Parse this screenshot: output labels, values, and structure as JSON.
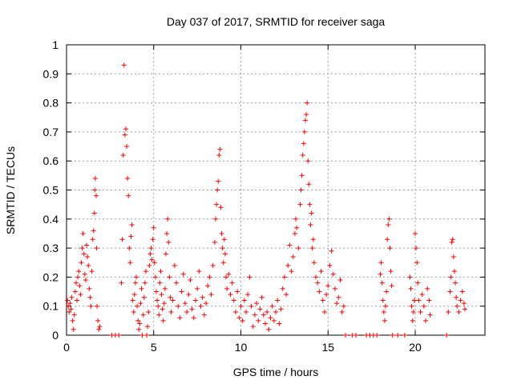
{
  "chart_data": {
    "type": "scatter",
    "title": "Day 037 of 2017, SRMTID for receiver saga",
    "xlabel": "GPS time / hours",
    "ylabel": "SRMTID / TECUs",
    "xlim": [
      0,
      24
    ],
    "ylim": [
      0,
      1
    ],
    "x_ticks": [
      0,
      5,
      10,
      15,
      20
    ],
    "x_tick_labels": [
      "0",
      "5",
      "10",
      "15",
      "20"
    ],
    "y_ticks": [
      0,
      0.1,
      0.2,
      0.3,
      0.4,
      0.5,
      0.6,
      0.7,
      0.8,
      0.9,
      1
    ],
    "y_tick_labels": [
      "0",
      "0.1",
      "0.2",
      "0.3",
      "0.4",
      "0.5",
      "0.6",
      "0.7",
      "0.8",
      "0.9",
      "1"
    ],
    "grid": true,
    "marker": "+",
    "color": "#ff0000",
    "series": [
      {
        "name": "SRMTID",
        "points": [
          [
            0.05,
            0.12
          ],
          [
            0.1,
            0.1
          ],
          [
            0.15,
            0.08
          ],
          [
            0.2,
            0.11
          ],
          [
            0.25,
            0.09
          ],
          [
            0.3,
            0.13
          ],
          [
            0.35,
            0.05
          ],
          [
            0.4,
            0.02
          ],
          [
            0.45,
            0.07
          ],
          [
            0.5,
            0.15
          ],
          [
            0.55,
            0.18
          ],
          [
            0.6,
            0.12
          ],
          [
            0.65,
            0.2
          ],
          [
            0.7,
            0.22
          ],
          [
            0.75,
            0.17
          ],
          [
            0.8,
            0.14
          ],
          [
            0.85,
            0.25
          ],
          [
            0.9,
            0.3
          ],
          [
            0.95,
            0.35
          ],
          [
            1.0,
            0.28
          ],
          [
            1.05,
            0.21
          ],
          [
            1.1,
            0.19
          ],
          [
            1.15,
            0.31
          ],
          [
            1.2,
            0.27
          ],
          [
            1.25,
            0.24
          ],
          [
            1.3,
            0.16
          ],
          [
            1.35,
            0.13
          ],
          [
            1.4,
            0.1
          ],
          [
            1.45,
            0.22
          ],
          [
            1.5,
            0.33
          ],
          [
            1.55,
            0.36
          ],
          [
            1.6,
            0.42
          ],
          [
            1.62,
            0.5
          ],
          [
            1.65,
            0.54
          ],
          [
            1.7,
            0.48
          ],
          [
            1.72,
            0.3
          ],
          [
            1.75,
            0.1
          ],
          [
            1.8,
            0.05
          ],
          [
            1.85,
            0.02
          ],
          [
            1.9,
            0.03
          ],
          [
            2.6,
            0.0
          ],
          [
            2.8,
            0.0
          ],
          [
            3.0,
            0.0
          ],
          [
            3.15,
            0.18
          ],
          [
            3.2,
            0.33
          ],
          [
            3.25,
            0.62
          ],
          [
            3.3,
            0.93
          ],
          [
            3.35,
            0.69
          ],
          [
            3.4,
            0.71
          ],
          [
            3.45,
            0.65
          ],
          [
            3.5,
            0.54
          ],
          [
            3.55,
            0.48
          ],
          [
            3.6,
            0.3
          ],
          [
            3.65,
            0.25
          ],
          [
            3.7,
            0.34
          ],
          [
            3.75,
            0.38
          ],
          [
            3.8,
            0.12
          ],
          [
            3.85,
            0.08
          ],
          [
            3.9,
            0.14
          ],
          [
            3.95,
            0.18
          ],
          [
            4.0,
            0.2
          ],
          [
            4.05,
            0.1
          ],
          [
            4.1,
            0.05
          ],
          [
            4.15,
            0.02
          ],
          [
            4.2,
            0.04
          ],
          [
            4.25,
            0.11
          ],
          [
            4.3,
            0.16
          ],
          [
            4.35,
            0.0
          ],
          [
            4.4,
            0.07
          ],
          [
            4.45,
            0.13
          ],
          [
            4.5,
            0.18
          ],
          [
            4.55,
            0.22
          ],
          [
            4.6,
            0.0
          ],
          [
            4.65,
            0.03
          ],
          [
            4.7,
            0.08
          ],
          [
            4.75,
            0.24
          ],
          [
            4.8,
            0.28
          ],
          [
            4.85,
            0.3
          ],
          [
            4.9,
            0.26
          ],
          [
            4.95,
            0.33
          ],
          [
            5.0,
            0.37
          ],
          [
            5.05,
            0.25
          ],
          [
            5.1,
            0.2
          ],
          [
            5.15,
            0.15
          ],
          [
            5.2,
            0.12
          ],
          [
            5.25,
            0.1
          ],
          [
            5.3,
            0.07
          ],
          [
            5.35,
            0.18
          ],
          [
            5.4,
            0.22
          ],
          [
            5.45,
            0.14
          ],
          [
            5.5,
            0.09
          ],
          [
            5.55,
            0.05
          ],
          [
            5.6,
            0.11
          ],
          [
            5.65,
            0.16
          ],
          [
            5.7,
            0.28
          ],
          [
            5.75,
            0.35
          ],
          [
            5.8,
            0.4
          ],
          [
            5.85,
            0.32
          ],
          [
            5.9,
            0.2
          ],
          [
            5.95,
            0.13
          ],
          [
            6.0,
            0.08
          ],
          [
            6.1,
            0.12
          ],
          [
            6.2,
            0.24
          ],
          [
            6.3,
            0.18
          ],
          [
            6.4,
            0.1
          ],
          [
            6.5,
            0.06
          ],
          [
            6.6,
            0.15
          ],
          [
            6.7,
            0.21
          ],
          [
            6.8,
            0.11
          ],
          [
            6.9,
            0.08
          ],
          [
            7.0,
            0.14
          ],
          [
            7.1,
            0.19
          ],
          [
            7.2,
            0.09
          ],
          [
            7.3,
            0.06
          ],
          [
            7.4,
            0.12
          ],
          [
            7.5,
            0.16
          ],
          [
            7.6,
            0.22
          ],
          [
            7.7,
            0.1
          ],
          [
            7.8,
            0.13
          ],
          [
            7.9,
            0.07
          ],
          [
            8.0,
            0.11
          ],
          [
            8.1,
            0.17
          ],
          [
            8.2,
            0.2
          ],
          [
            8.3,
            0.14
          ],
          [
            8.4,
            0.24
          ],
          [
            8.5,
            0.32
          ],
          [
            8.55,
            0.4
          ],
          [
            8.6,
            0.45
          ],
          [
            8.65,
            0.5
          ],
          [
            8.7,
            0.53
          ],
          [
            8.75,
            0.62
          ],
          [
            8.8,
            0.64
          ],
          [
            8.85,
            0.44
          ],
          [
            8.9,
            0.35
          ],
          [
            8.95,
            0.3
          ],
          [
            9.0,
            0.25
          ],
          [
            9.05,
            0.33
          ],
          [
            9.1,
            0.28
          ],
          [
            9.15,
            0.2
          ],
          [
            9.2,
            0.16
          ],
          [
            9.3,
            0.21
          ],
          [
            9.4,
            0.14
          ],
          [
            9.5,
            0.18
          ],
          [
            9.6,
            0.12
          ],
          [
            9.7,
            0.08
          ],
          [
            9.8,
            0.15
          ],
          [
            9.9,
            0.06
          ],
          [
            10.0,
            0.1
          ],
          [
            10.1,
            0.05
          ],
          [
            10.2,
            0.12
          ],
          [
            10.3,
            0.08
          ],
          [
            10.4,
            0.14
          ],
          [
            10.5,
            0.2
          ],
          [
            10.6,
            0.1
          ],
          [
            10.7,
            0.03
          ],
          [
            10.8,
            0.07
          ],
          [
            10.9,
            0.11
          ],
          [
            11.0,
            0.05
          ],
          [
            11.1,
            0.09
          ],
          [
            11.2,
            0.13
          ],
          [
            11.3,
            0.07
          ],
          [
            11.4,
            0.04
          ],
          [
            11.5,
            0.08
          ],
          [
            11.6,
            0.02
          ],
          [
            11.7,
            0.06
          ],
          [
            11.8,
            0.1
          ],
          [
            11.9,
            0.05
          ],
          [
            12.0,
            0.08
          ],
          [
            12.1,
            0.12
          ],
          [
            12.2,
            0.04
          ],
          [
            12.3,
            0.09
          ],
          [
            12.4,
            0.16
          ],
          [
            12.5,
            0.2
          ],
          [
            12.6,
            0.14
          ],
          [
            12.7,
            0.24
          ],
          [
            12.8,
            0.31
          ],
          [
            12.9,
            0.22
          ],
          [
            13.0,
            0.27
          ],
          [
            13.1,
            0.35
          ],
          [
            13.15,
            0.4
          ],
          [
            13.2,
            0.37
          ],
          [
            13.3,
            0.3
          ],
          [
            13.4,
            0.45
          ],
          [
            13.45,
            0.5
          ],
          [
            13.5,
            0.55
          ],
          [
            13.55,
            0.62
          ],
          [
            13.6,
            0.66
          ],
          [
            13.65,
            0.7
          ],
          [
            13.7,
            0.74
          ],
          [
            13.75,
            0.76
          ],
          [
            13.8,
            0.8
          ],
          [
            13.85,
            0.6
          ],
          [
            13.9,
            0.52
          ],
          [
            13.95,
            0.45
          ],
          [
            14.0,
            0.38
          ],
          [
            14.05,
            0.42
          ],
          [
            14.1,
            0.3
          ],
          [
            14.15,
            0.33
          ],
          [
            14.2,
            0.25
          ],
          [
            14.3,
            0.2
          ],
          [
            14.4,
            0.18
          ],
          [
            14.5,
            0.15
          ],
          [
            14.6,
            0.22
          ],
          [
            14.7,
            0.12
          ],
          [
            14.8,
            0.08
          ],
          [
            14.9,
            0.14
          ],
          [
            15.0,
            0.17
          ],
          [
            15.1,
            0.24
          ],
          [
            15.2,
            0.29
          ],
          [
            15.3,
            0.21
          ],
          [
            15.4,
            0.16
          ],
          [
            15.5,
            0.11
          ],
          [
            15.6,
            0.13
          ],
          [
            15.7,
            0.19
          ],
          [
            15.8,
            0.08
          ],
          [
            15.9,
            0.1
          ],
          [
            16.0,
            0.0
          ],
          [
            16.4,
            0.0
          ],
          [
            16.6,
            0.0
          ],
          [
            17.2,
            0.0
          ],
          [
            17.4,
            0.0
          ],
          [
            17.6,
            0.0
          ],
          [
            17.8,
            0.0
          ],
          [
            18.0,
            0.21
          ],
          [
            18.05,
            0.25
          ],
          [
            18.1,
            0.18
          ],
          [
            18.15,
            0.12
          ],
          [
            18.2,
            0.08
          ],
          [
            18.25,
            0.05
          ],
          [
            18.3,
            0.1
          ],
          [
            18.35,
            0.15
          ],
          [
            18.4,
            0.33
          ],
          [
            18.45,
            0.38
          ],
          [
            18.5,
            0.4
          ],
          [
            18.55,
            0.3
          ],
          [
            18.6,
            0.22
          ],
          [
            18.65,
            0.17
          ],
          [
            18.7,
            0.0
          ],
          [
            19.0,
            0.0
          ],
          [
            19.4,
            0.0
          ],
          [
            19.7,
            0.2
          ],
          [
            19.75,
            0.16
          ],
          [
            19.8,
            0.1
          ],
          [
            19.85,
            0.05
          ],
          [
            19.9,
            0.08
          ],
          [
            19.95,
            0.12
          ],
          [
            20.0,
            0.35
          ],
          [
            20.05,
            0.3
          ],
          [
            20.1,
            0.25
          ],
          [
            20.15,
            0.18
          ],
          [
            20.2,
            0.12
          ],
          [
            20.3,
            0.08
          ],
          [
            20.4,
            0.14
          ],
          [
            20.5,
            0.1
          ],
          [
            20.6,
            0.05
          ],
          [
            20.7,
            0.16
          ],
          [
            20.8,
            0.12
          ],
          [
            20.85,
            0.07
          ],
          [
            21.8,
            0.0
          ],
          [
            21.9,
            0.08
          ],
          [
            22.0,
            0.15
          ],
          [
            22.05,
            0.2
          ],
          [
            22.1,
            0.32
          ],
          [
            22.15,
            0.33
          ],
          [
            22.2,
            0.27
          ],
          [
            22.25,
            0.22
          ],
          [
            22.3,
            0.18
          ],
          [
            22.35,
            0.13
          ],
          [
            22.4,
            0.1
          ],
          [
            22.5,
            0.08
          ],
          [
            22.6,
            0.12
          ],
          [
            22.7,
            0.15
          ],
          [
            22.8,
            0.11
          ],
          [
            22.85,
            0.09
          ]
        ]
      }
    ]
  }
}
